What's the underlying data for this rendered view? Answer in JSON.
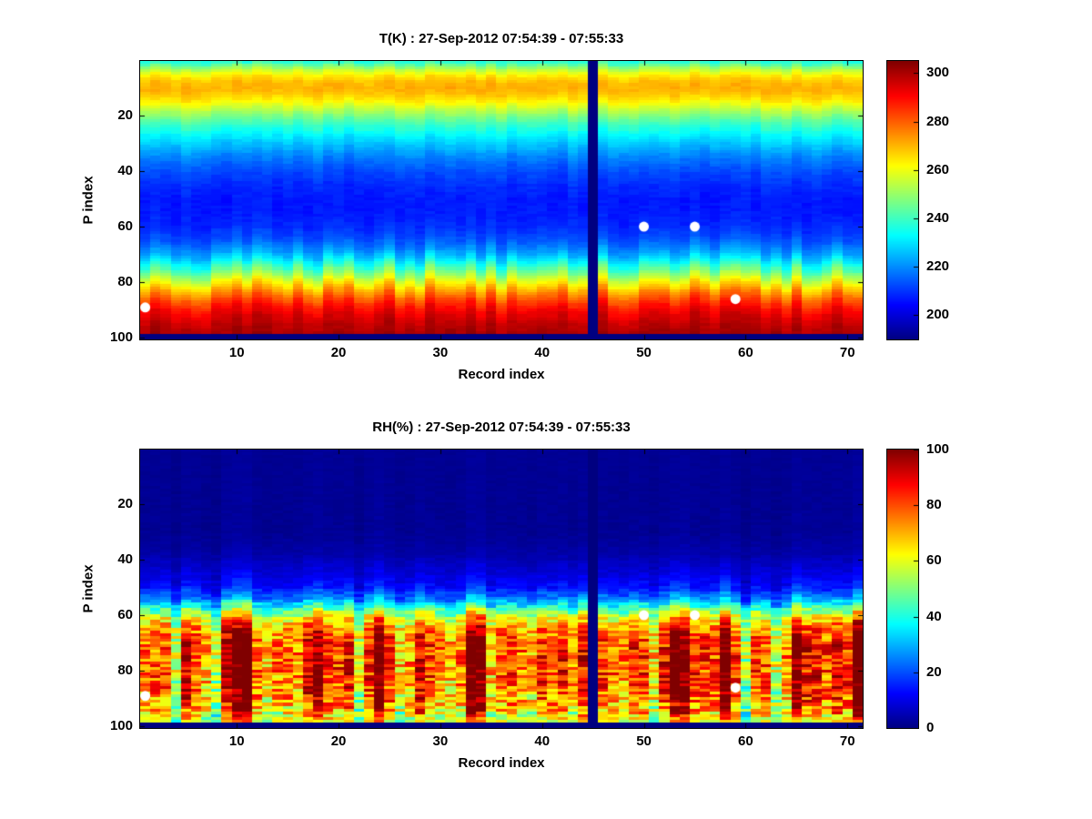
{
  "figure": {
    "background_color": "#ffffff",
    "text_color": "#000000"
  },
  "chart_data": [
    {
      "type": "heatmap",
      "title": "T(K) : 27-Sep-2012 07:54:39 - 07:55:33",
      "xlabel": "Record index",
      "ylabel": "P index",
      "x_ticks": [
        10,
        20,
        30,
        40,
        50,
        60,
        70
      ],
      "y_ticks": [
        20,
        40,
        60,
        80,
        100
      ],
      "colorbar_ticks": [
        200,
        220,
        240,
        260,
        280,
        300
      ],
      "x_range": [
        1,
        71
      ],
      "y_range": [
        1,
        100
      ],
      "y_axis_reversed": true,
      "colormap": "jet",
      "clim": [
        190,
        305
      ],
      "n_records": 71,
      "n_levels": 100,
      "missing_record": 45,
      "bottom_missing_rows": 2,
      "value_profile": {
        "p_index": [
          1,
          2,
          4,
          6,
          8,
          10,
          12,
          15,
          18,
          22,
          26,
          30,
          35,
          40,
          45,
          50,
          55,
          60,
          65,
          70,
          73,
          76,
          79,
          82,
          85,
          88,
          91,
          94,
          97,
          100
        ],
        "value": [
          237,
          245,
          256,
          264,
          269,
          271,
          269,
          263,
          254,
          243,
          234,
          227,
          219,
          213,
          209,
          207,
          207,
          209,
          214,
          224,
          234,
          246,
          258,
          269,
          279,
          287,
          293,
          297,
          300,
          301
        ]
      },
      "noise": {
        "mode": "shift",
        "seed": 20120927,
        "column_shift": 2.2,
        "column_amp": 3.0,
        "cell_amp": 1.3
      },
      "markers": {
        "shape": "circle",
        "color": "#ffffff",
        "radius_px": 5.5,
        "points": [
          {
            "record": 1,
            "p_index": 89
          },
          {
            "record": 50,
            "p_index": 60
          },
          {
            "record": 55,
            "p_index": 60
          },
          {
            "record": 59,
            "p_index": 86
          }
        ]
      }
    },
    {
      "type": "heatmap",
      "title": "RH(%) : 27-Sep-2012 07:54:39 - 07:55:33",
      "xlabel": "Record index",
      "ylabel": "P index",
      "x_ticks": [
        10,
        20,
        30,
        40,
        50,
        60,
        70
      ],
      "y_ticks": [
        20,
        40,
        60,
        80,
        100
      ],
      "colorbar_ticks": [
        0,
        20,
        40,
        60,
        80,
        100
      ],
      "x_range": [
        1,
        71
      ],
      "y_range": [
        1,
        100
      ],
      "y_axis_reversed": true,
      "colormap": "jet",
      "clim": [
        0,
        100
      ],
      "n_records": 71,
      "n_levels": 100,
      "missing_record": 45,
      "bottom_missing_rows": 2,
      "value_profile": {
        "p_index": [
          1,
          30,
          38,
          42,
          46,
          50,
          54,
          57,
          60,
          63,
          66,
          70,
          75,
          80,
          85,
          90,
          94,
          97,
          100
        ],
        "value": [
          2,
          2,
          4,
          7,
          10,
          14,
          25,
          40,
          58,
          70,
          77,
          81,
          82,
          81,
          79,
          76,
          70,
          62,
          55
        ]
      },
      "noise": {
        "mode": "amp",
        "seed": 754539,
        "col_amp": {
          "p_index": [
            1,
            38,
            46,
            52,
            58,
            64,
            70,
            95,
            100
          ],
          "amp": [
            0.5,
            1,
            3,
            6,
            12,
            18,
            22,
            24,
            8
          ]
        },
        "cell_amp": {
          "p_index": [
            1,
            38,
            46,
            52,
            58,
            64,
            70,
            95,
            100
          ],
          "amp": [
            0.5,
            1,
            2,
            4,
            8,
            12,
            14,
            16,
            5
          ]
        }
      },
      "markers": {
        "shape": "circle",
        "color": "#ffffff",
        "radius_px": 5.5,
        "points": [
          {
            "record": 1,
            "p_index": 89
          },
          {
            "record": 50,
            "p_index": 60
          },
          {
            "record": 55,
            "p_index": 60
          },
          {
            "record": 59,
            "p_index": 86
          }
        ]
      }
    }
  ]
}
